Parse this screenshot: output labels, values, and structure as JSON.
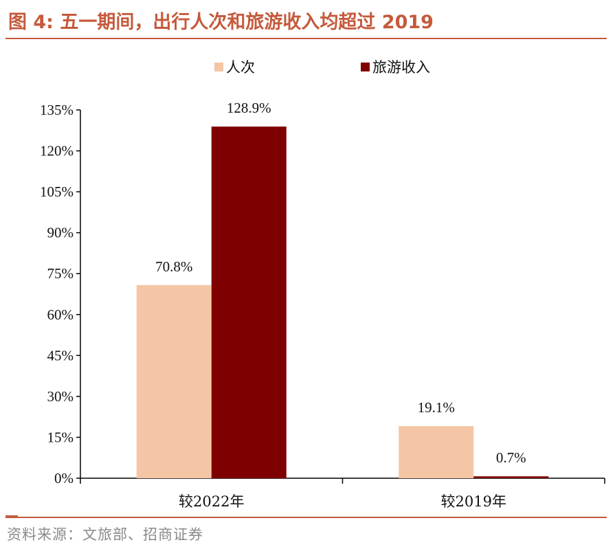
{
  "header": {
    "title": "图 4:  五一期间，出行人次和旅游收入均超过 2019"
  },
  "footer": {
    "source": "资料来源：文旅部、招商证券"
  },
  "colors": {
    "accent": "#c55a3c",
    "series_1": "#f5c6a6",
    "series_2": "#7f0000"
  },
  "chart_data": {
    "type": "bar",
    "categories": [
      "较2022年",
      "较2019年"
    ],
    "series": [
      {
        "name": "人次",
        "values": [
          70.8,
          19.1
        ],
        "labels": [
          "70.8%",
          "19.1%"
        ]
      },
      {
        "name": "旅游收入",
        "values": [
          128.9,
          0.7
        ],
        "labels": [
          "128.9%",
          "0.7%"
        ]
      }
    ],
    "y_ticks": [
      "0%",
      "15%",
      "30%",
      "45%",
      "60%",
      "75%",
      "90%",
      "105%",
      "120%",
      "135%"
    ],
    "ylim": [
      0,
      135
    ],
    "legend_position": "top-center",
    "grid": false
  }
}
